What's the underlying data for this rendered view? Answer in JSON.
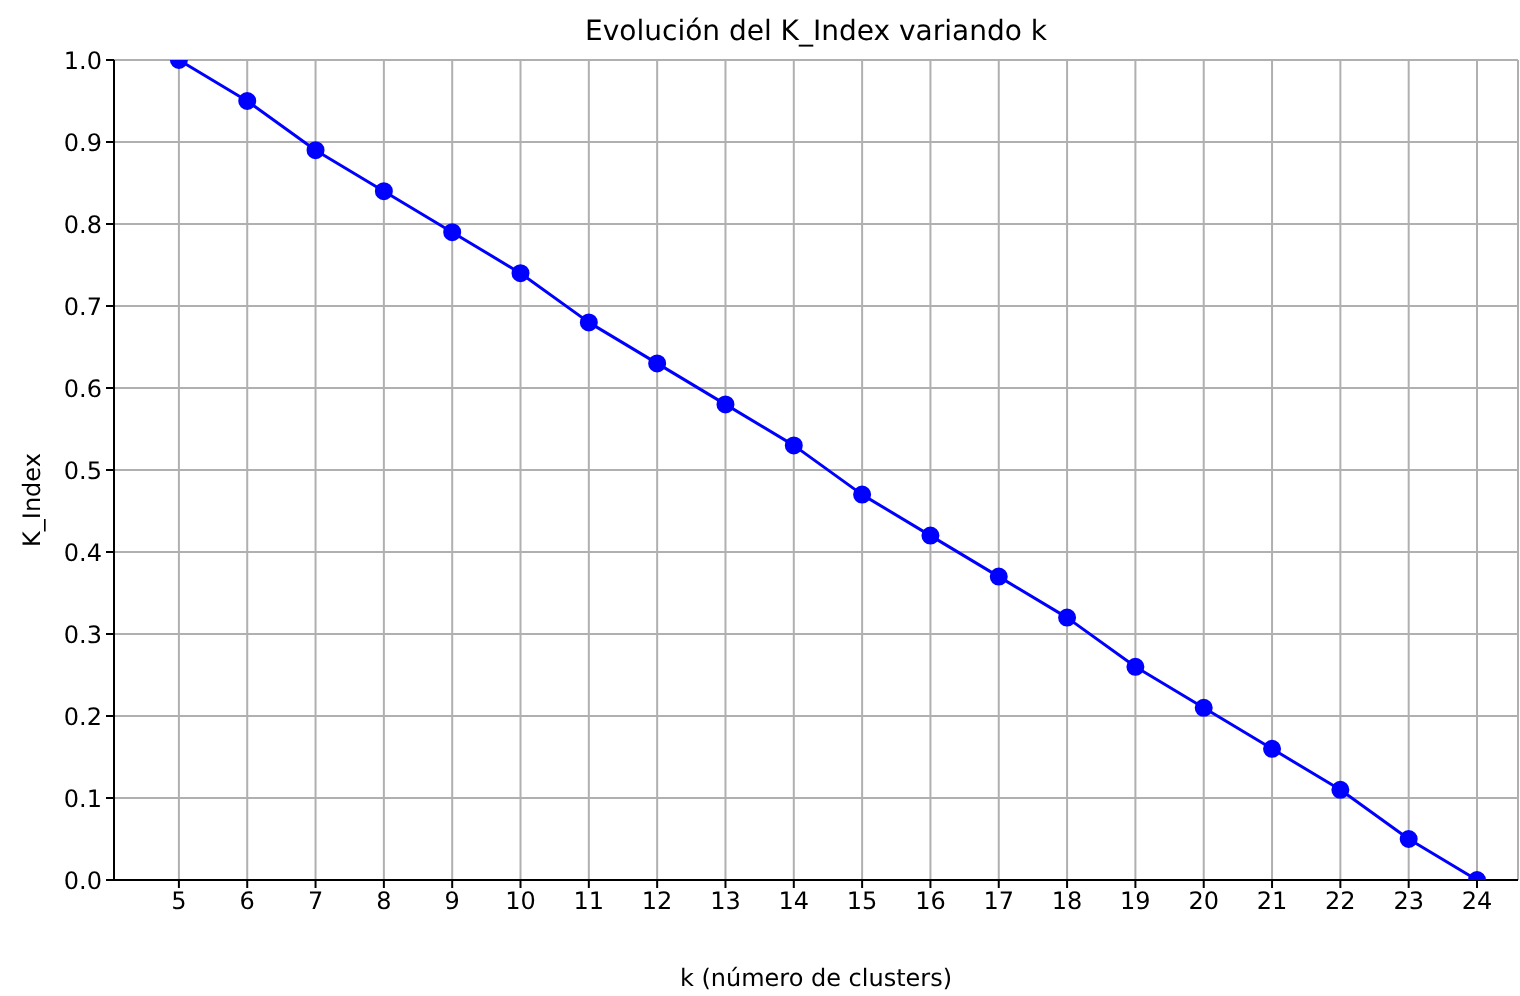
{
  "chart_data": {
    "type": "line",
    "title": "Evolución del K_Index variando k",
    "xlabel": "k (número de clusters)",
    "ylabel": "K_Index",
    "x": [
      5,
      6,
      7,
      8,
      9,
      10,
      11,
      12,
      13,
      14,
      15,
      16,
      17,
      18,
      19,
      20,
      21,
      22,
      23,
      24
    ],
    "series": [
      {
        "color": "#0000ff",
        "values": [
          1.0,
          0.95,
          0.89,
          0.84,
          0.79,
          0.74,
          0.68,
          0.63,
          0.58,
          0.53,
          0.47,
          0.42,
          0.37,
          0.32,
          0.26,
          0.21,
          0.16,
          0.11,
          0.05,
          0.0
        ]
      }
    ],
    "xlim": [
      4.05,
      24.6
    ],
    "xticks": [
      5,
      6,
      7,
      8,
      9,
      10,
      11,
      12,
      13,
      14,
      15,
      16,
      17,
      18,
      19,
      20,
      21,
      22,
      23,
      24
    ],
    "ylim": [
      0,
      1
    ],
    "yticks": [
      {
        "value": 0,
        "label": "0.0"
      },
      0.1,
      0.2,
      0.3,
      0.4,
      0.5,
      0.6,
      0.7,
      0.8,
      0.9,
      {
        "value": 1,
        "label": "1.0"
      }
    ],
    "grid": true,
    "marker": "circle",
    "line_style": "solid"
  }
}
